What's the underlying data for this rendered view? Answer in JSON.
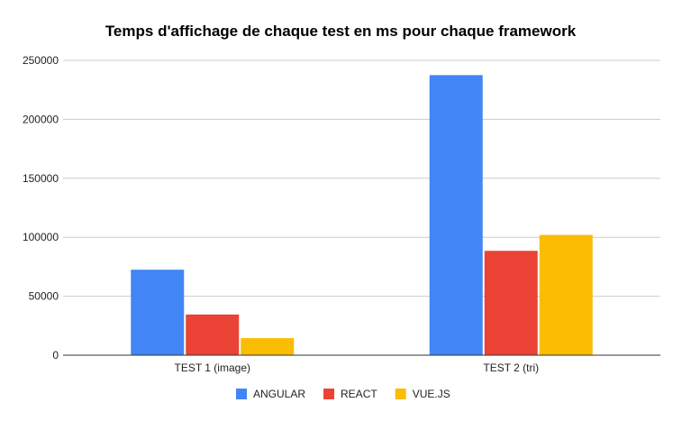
{
  "chart_data": {
    "type": "bar",
    "title": "Temps d'affichage de chaque test en ms pour chaque framework",
    "categories": [
      "TEST 1 (image)",
      "TEST 2 (tri)"
    ],
    "series": [
      {
        "name": "ANGULAR",
        "color": "#4285f4",
        "values": [
          72500,
          237500
        ]
      },
      {
        "name": "REACT",
        "color": "#ea4335",
        "values": [
          34500,
          88500
        ]
      },
      {
        "name": "VUE.JS",
        "color": "#fbbc04",
        "values": [
          14500,
          102000
        ]
      }
    ],
    "yticks": [
      "0",
      "50000",
      "100000",
      "150000",
      "200000",
      "250000"
    ],
    "ylim": [
      0,
      250000
    ],
    "grid": true,
    "legend_position": "bottom"
  }
}
